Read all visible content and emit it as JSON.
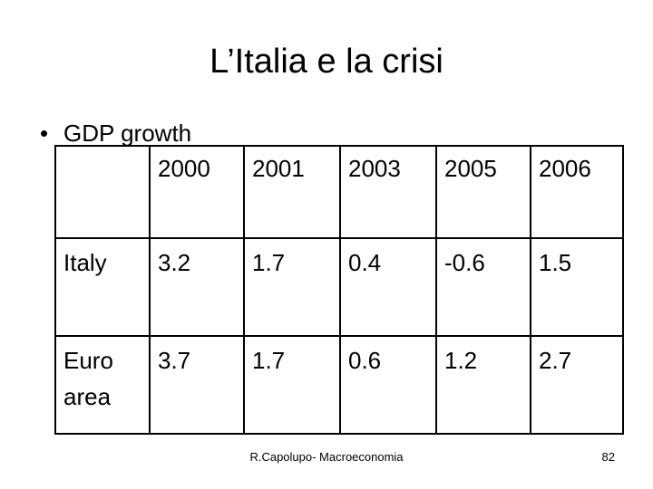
{
  "slide": {
    "title": "L’Italia e la crisi",
    "bullet_symbol": "•",
    "bullet_text": "GDP growth"
  },
  "table": {
    "header": [
      "",
      "2000",
      "2001",
      "2003",
      "2005",
      "2006"
    ],
    "rows": [
      {
        "label": "Italy",
        "values": [
          "3.2",
          "1.7",
          "0.4",
          "-0.6",
          "1.5"
        ]
      },
      {
        "label_line1": "Euro",
        "label_line2": "area",
        "values": [
          "3.7",
          "1.7",
          "0.6",
          "1.2",
          "2.7"
        ]
      }
    ]
  },
  "footer": {
    "text": "R.Capolupo- Macroeconomia",
    "page_number": "82"
  }
}
